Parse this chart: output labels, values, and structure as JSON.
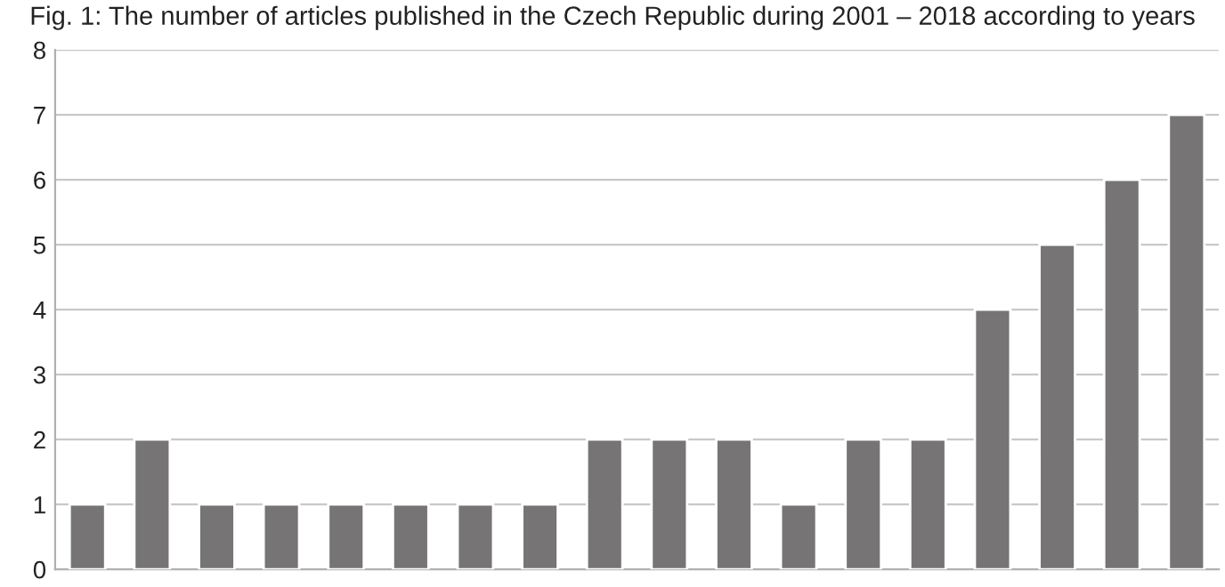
{
  "chart_data": {
    "type": "bar",
    "title": "Fig. 1: The number of articles published in the Czech Republic during 2001 – 2018 according to years",
    "categories": [
      null,
      null,
      null,
      null,
      null,
      null,
      null,
      null,
      null,
      null,
      null,
      null,
      null,
      null,
      null,
      null,
      null,
      null
    ],
    "values": [
      1,
      2,
      1,
      1,
      1,
      1,
      1,
      1,
      2,
      2,
      2,
      1,
      2,
      2,
      4,
      5,
      6,
      7
    ],
    "color": "#767474",
    "ylim": [
      0,
      8
    ],
    "yticks": [
      0,
      1,
      2,
      3,
      4,
      5,
      6,
      7,
      8
    ],
    "grid": "y"
  }
}
